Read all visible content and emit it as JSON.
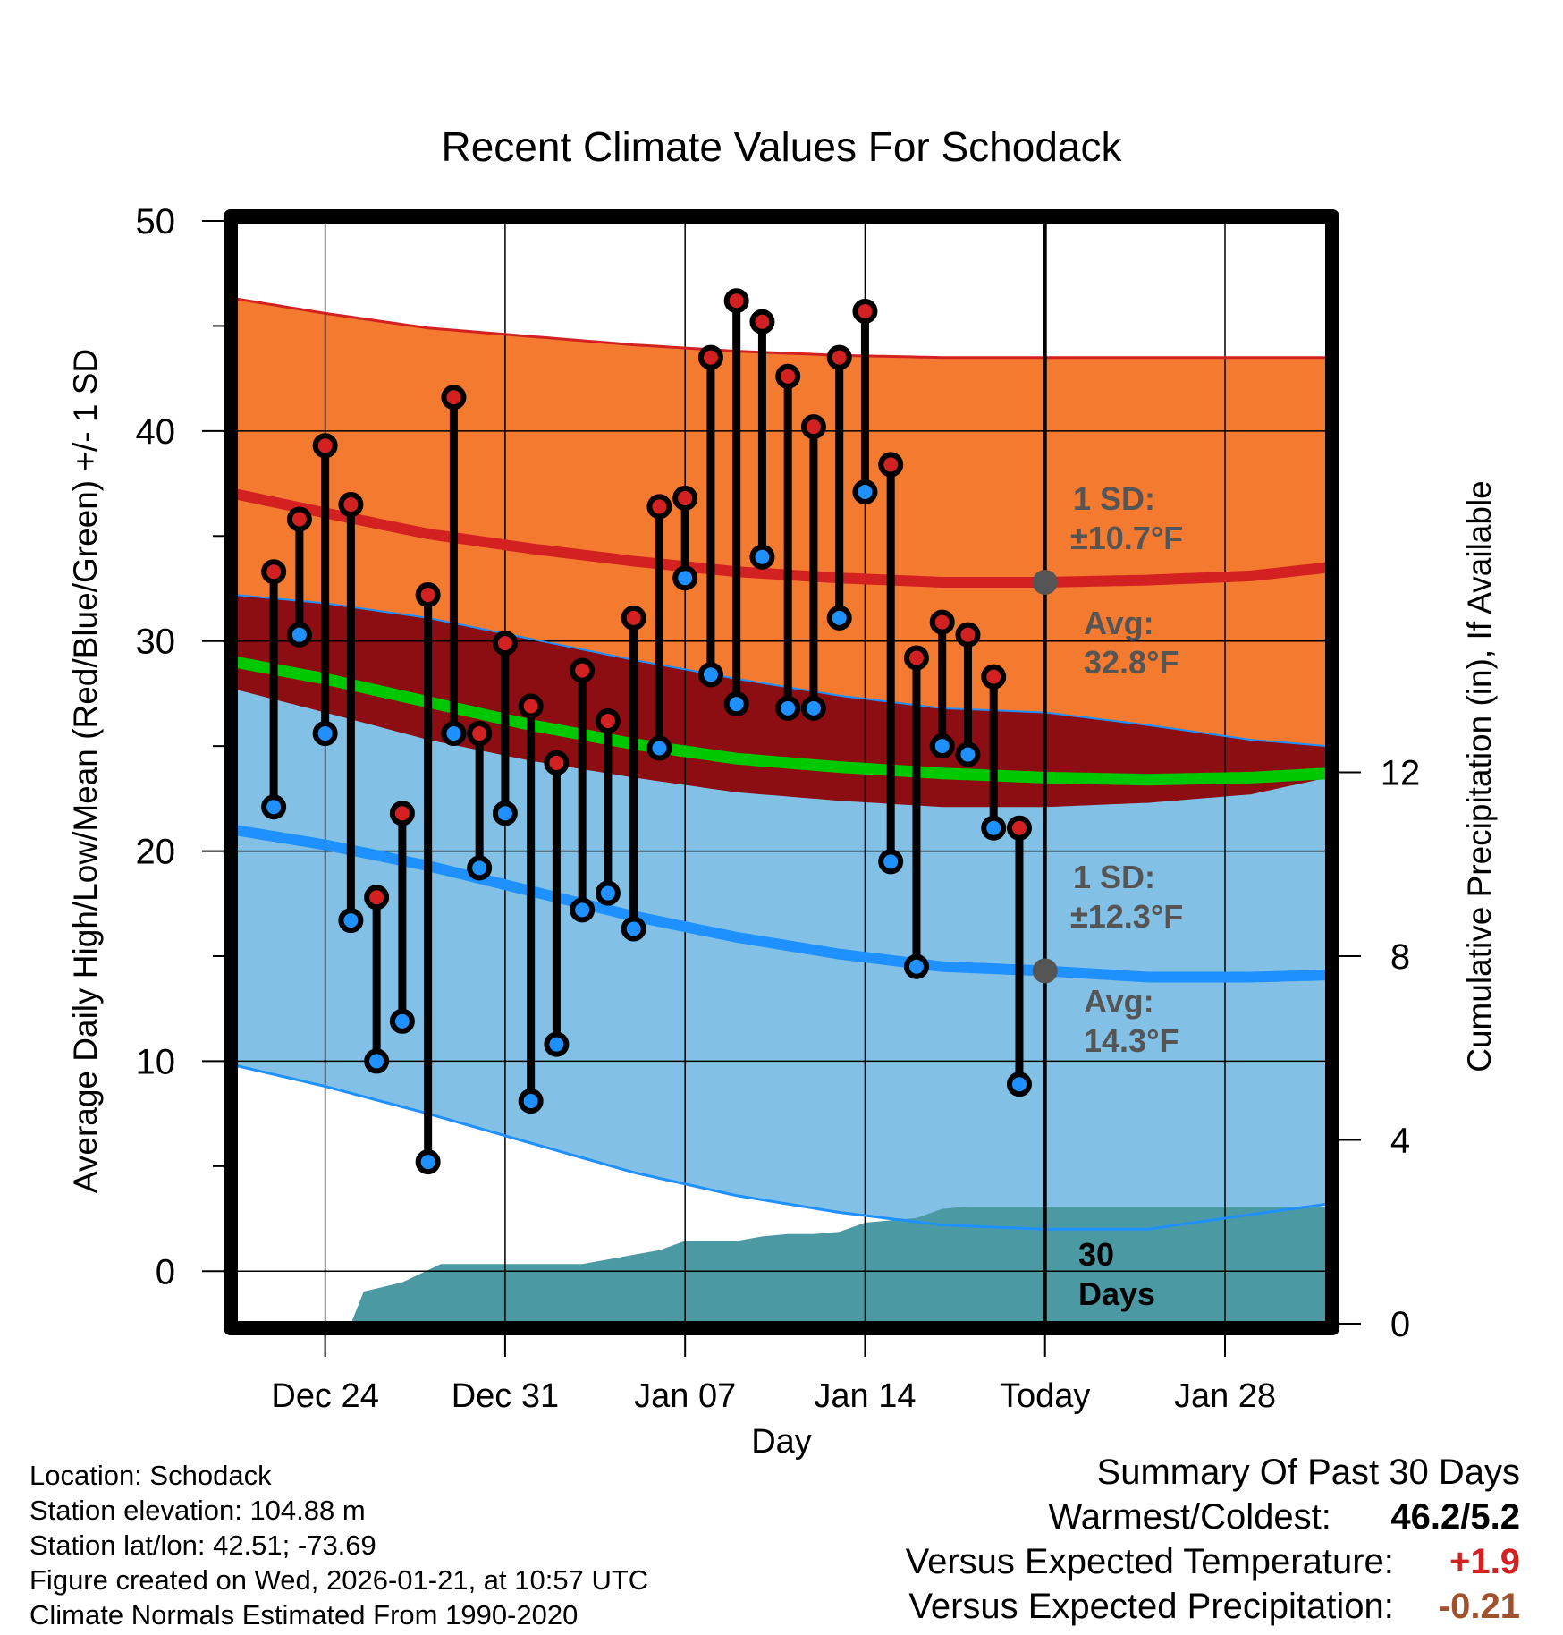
{
  "chart_data": {
    "type": "range",
    "title": "Recent Climate Values For Schodack",
    "xlabel": "Day",
    "ylabel_left": "Average Daily High/Low/Mean (Red/Blue/Green) +/- 1 SD",
    "ylabel_right": "Cumulative Precipitation (in), If Available",
    "ylim_left": [
      -2.5,
      50
    ],
    "yticks_left": [
      0,
      10,
      20,
      30,
      40,
      50
    ],
    "ylim_right": [
      0,
      24
    ],
    "yticks_right": [
      0,
      4,
      8,
      12
    ],
    "xlim_days": [
      -31.5,
      11
    ],
    "x_ticks": [
      {
        "day": -28,
        "label": "Dec 24"
      },
      {
        "day": -21,
        "label": "Dec 31"
      },
      {
        "day": -14,
        "label": "Jan 07"
      },
      {
        "day": -7,
        "label": "Jan 14"
      },
      {
        "day": 0,
        "label": "Today"
      },
      {
        "day": 7,
        "label": "Jan 28"
      }
    ],
    "normals": {
      "days": [
        -31.5,
        -28,
        -24,
        -20,
        -16,
        -12,
        -8,
        -4,
        0,
        4,
        8,
        11
      ],
      "high_avg": [
        37.0,
        36.1,
        35.1,
        34.4,
        33.8,
        33.3,
        33.0,
        32.8,
        32.8,
        32.9,
        33.1,
        33.5
      ],
      "high_sd": [
        9.3,
        9.5,
        9.8,
        10.1,
        10.3,
        10.5,
        10.6,
        10.7,
        10.7,
        10.6,
        10.4,
        10.0
      ],
      "low_avg": [
        21.0,
        20.3,
        19.3,
        18.1,
        16.9,
        15.9,
        15.1,
        14.5,
        14.3,
        14.0,
        14.0,
        14.1
      ],
      "low_sd": [
        11.2,
        11.5,
        11.8,
        12.0,
        12.2,
        12.3,
        12.3,
        12.3,
        12.3,
        12.0,
        11.3,
        10.9
      ],
      "mean_avg": [
        29.0,
        28.2,
        27.1,
        26.0,
        25.1,
        24.4,
        24.0,
        23.7,
        23.5,
        23.4,
        23.5,
        23.7
      ]
    },
    "days": [
      -30,
      -29,
      -28,
      -27,
      -26,
      -25,
      -24,
      -23,
      -22,
      -21,
      -20,
      -19,
      -18,
      -17,
      -16,
      -15,
      -14,
      -13,
      -12,
      -11,
      -10,
      -9,
      -8,
      -7,
      -6,
      -5,
      -4,
      -3,
      -2,
      -1
    ],
    "highs": [
      33.3,
      35.8,
      39.3,
      36.5,
      17.8,
      21.8,
      32.2,
      41.6,
      25.6,
      29.9,
      26.9,
      24.2,
      28.6,
      26.2,
      31.1,
      36.4,
      36.8,
      43.5,
      46.2,
      45.2,
      42.6,
      40.2,
      43.5,
      45.7,
      38.4,
      29.2,
      30.9,
      30.3,
      28.3,
      21.1
    ],
    "lows": [
      22.1,
      30.3,
      25.6,
      16.7,
      10.0,
      11.9,
      5.2,
      25.6,
      19.2,
      21.8,
      8.1,
      10.8,
      17.2,
      18.0,
      16.3,
      24.9,
      33.0,
      28.4,
      27.0,
      34.0,
      26.8,
      26.8,
      31.1,
      37.1,
      19.5,
      14.5,
      25.0,
      24.6,
      21.1,
      8.9
    ],
    "precip_days": [
      -31.5,
      -29,
      -27,
      -26.5,
      -25,
      -23.5,
      -22,
      -20,
      -18,
      -17,
      -16,
      -15,
      -14,
      -12,
      -11,
      -10,
      -9,
      -8,
      -7,
      -6,
      -5,
      -4,
      -3,
      -2,
      -1,
      0,
      11
    ],
    "precip_cum": [
      0.0,
      0.0,
      0.0,
      0.7,
      0.9,
      1.3,
      1.3,
      1.3,
      1.3,
      1.4,
      1.5,
      1.6,
      1.8,
      1.8,
      1.9,
      1.95,
      1.95,
      2.0,
      2.2,
      2.25,
      2.3,
      2.5,
      2.55,
      2.55,
      2.55,
      2.55,
      2.55
    ],
    "annotations": {
      "high_sd": "1 SD:",
      "high_sd_val": "±10.7°F",
      "high_avg": "Avg:",
      "high_avg_val": "32.8°F",
      "low_sd": "1 SD:",
      "low_sd_val": "±12.3°F",
      "low_avg": "Avg:",
      "low_avg_val": "14.3°F",
      "days_num": "30",
      "days_word": "Days"
    },
    "colors": {
      "high_band": "#f47a30",
      "high_line": "#d32121",
      "low_band": "#82c0e6",
      "low_line": "#1e90ff",
      "mean_band": "#8c0d12",
      "mean_line": "#00c800",
      "precip": "#4b9aa3",
      "high_marker": "#d32121",
      "low_marker": "#1e90ff",
      "avg_marker": "#555555",
      "annotation_text": "#555555"
    }
  },
  "info": {
    "location": "Location: Schodack",
    "elevation": "Station elevation: 104.88 m",
    "latlon": "Station lat/lon: 42.51; -73.69",
    "created": "Figure created on Wed, 2026-01-21, at 10:57 UTC",
    "normals": "Climate Normals Estimated From 1990-2020"
  },
  "summary": {
    "title": "Summary Of Past 30 Days",
    "warm_cold_label": "Warmest/Coldest:",
    "warm_cold_value": "46.2/5.2",
    "temp_label": "Versus Expected Temperature:",
    "temp_value": "+1.9",
    "temp_color": "#d32121",
    "precip_label": "Versus Expected Precipitation:",
    "precip_value": "-0.21",
    "precip_color": "#a0522d"
  }
}
